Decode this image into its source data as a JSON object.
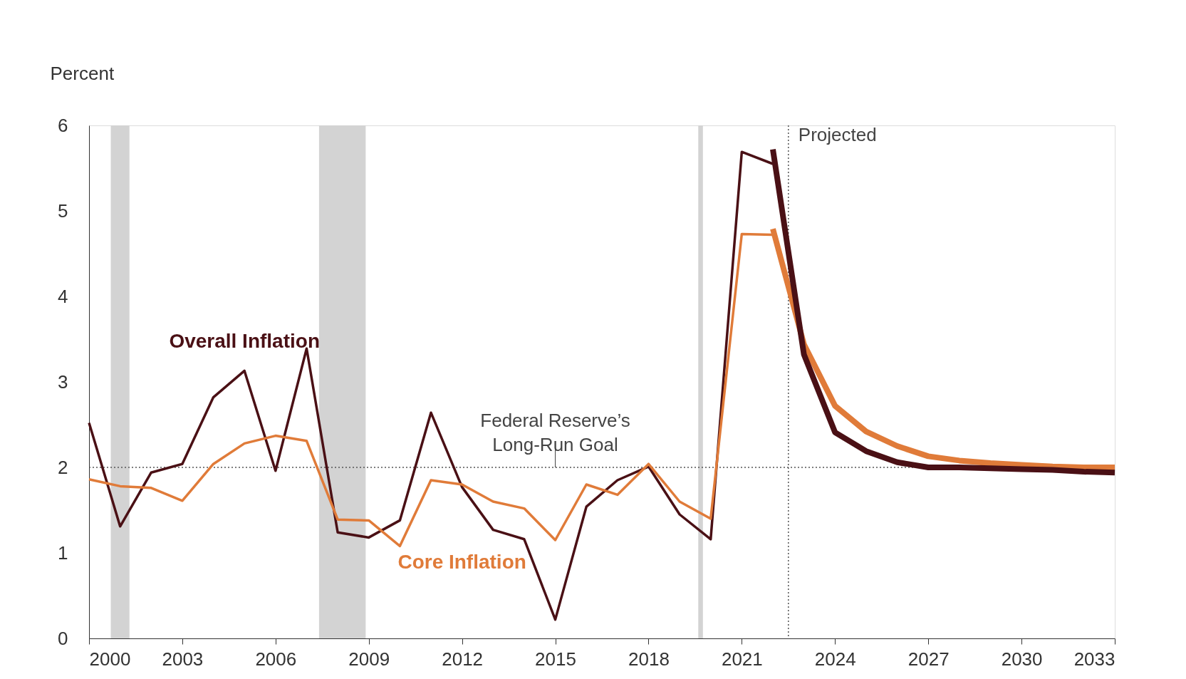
{
  "chart_data": {
    "type": "line",
    "ylabel": "Percent",
    "x": [
      2000,
      2001,
      2002,
      2003,
      2004,
      2005,
      2006,
      2007,
      2008,
      2009,
      2010,
      2011,
      2012,
      2013,
      2014,
      2015,
      2016,
      2017,
      2018,
      2019,
      2020,
      2021,
      2022
    ],
    "series": [
      {
        "name": "Overall Inflation",
        "color": "#4a1015",
        "values": [
          2.52,
          1.31,
          1.94,
          2.04,
          2.82,
          3.13,
          1.96,
          3.39,
          1.24,
          1.18,
          1.38,
          2.64,
          1.77,
          1.27,
          1.16,
          0.22,
          1.54,
          1.85,
          2.01,
          1.45,
          1.16,
          5.69,
          5.55
        ]
      },
      {
        "name": "Core Inflation",
        "color": "#e07b39",
        "values": [
          1.86,
          1.78,
          1.76,
          1.61,
          2.04,
          2.28,
          2.37,
          2.31,
          1.39,
          1.38,
          1.08,
          1.85,
          1.8,
          1.6,
          1.52,
          1.15,
          1.8,
          1.68,
          2.04,
          1.6,
          1.4,
          4.73,
          4.72
        ]
      },
      {
        "color": "#e07b39",
        "x": [
          2022,
          2023,
          2024,
          2025,
          2026,
          2027,
          2028,
          2029,
          2030,
          2031,
          2032,
          2033
        ],
        "values": [
          4.79,
          3.44,
          2.72,
          2.42,
          2.25,
          2.13,
          2.08,
          2.05,
          2.03,
          2.01,
          2.0,
          2.0
        ]
      },
      {
        "color": "#4a1015",
        "x": [
          2022,
          2023,
          2024,
          2025,
          2026,
          2027,
          2028,
          2029,
          2030,
          2031,
          2032,
          2033
        ],
        "values": [
          5.72,
          3.32,
          2.41,
          2.19,
          2.06,
          2.0,
          2.0,
          1.99,
          1.98,
          1.97,
          1.95,
          1.94
        ]
      }
    ],
    "xlim": [
      2000,
      2033
    ],
    "xticks": [
      2000,
      2003,
      2006,
      2009,
      2012,
      2015,
      2018,
      2021,
      2024,
      2027,
      2030,
      2033
    ],
    "ylim": [
      0,
      6
    ],
    "yticks": [
      0,
      1,
      2,
      3,
      4,
      5,
      6
    ],
    "ref_lines": [
      {
        "axis": "y",
        "value": 2,
        "label": "Federal Reserve’s\nLong-Run Goal",
        "color": "#555555",
        "line_style": "dotted"
      },
      {
        "axis": "x",
        "value": 2022.5,
        "label": "Projected",
        "color": "#555555",
        "line_style": "dotted"
      }
    ],
    "bands": [
      {
        "axis": "x",
        "from": 2000.7,
        "to": 2001.3,
        "color": "#d3d3d3"
      },
      {
        "axis": "x",
        "from": 2007.4,
        "to": 2008.9,
        "color": "#d3d3d3"
      },
      {
        "axis": "x",
        "from": 2019.6,
        "to": 2019.75,
        "color": "#d3d3d3"
      }
    ],
    "grid": false,
    "marker": "none",
    "line_style": "solid"
  }
}
